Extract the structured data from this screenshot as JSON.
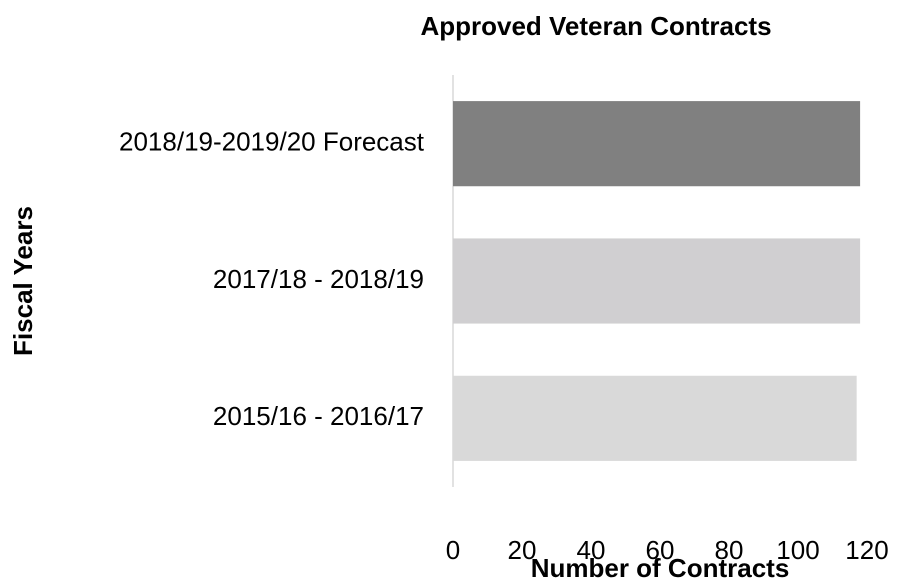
{
  "chart_data": {
    "type": "barh",
    "title": "Approved Veteran Contracts",
    "x_label": "Number of Contracts",
    "y_label": "Fiscal Years",
    "categories": [
      "2018/19-2019/20 Forecast",
      "2017/18 - 2018/19",
      "2015/16 - 2016/17"
    ],
    "values": [
      118,
      118,
      117
    ],
    "colors": [
      "#808080",
      "#d0cfd1",
      "#d9d9d9"
    ],
    "xlim": [
      0,
      120
    ],
    "xticks": [
      0,
      20,
      40,
      60,
      80,
      100,
      120
    ],
    "grid": false
  }
}
